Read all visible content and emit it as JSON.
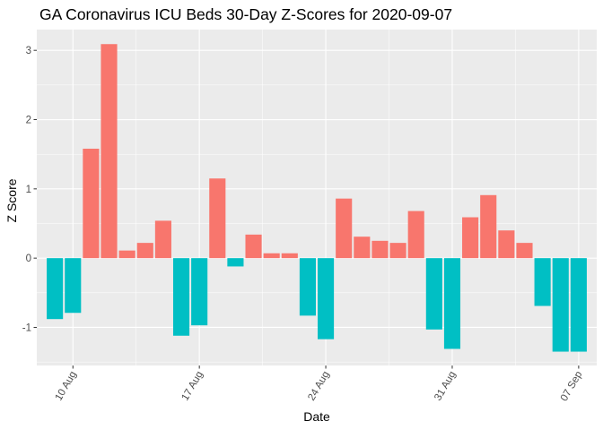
{
  "chart_data": {
    "type": "bar",
    "title": "GA Coronavirus ICU Beds 30-Day Z-Scores for 2020-09-07",
    "xlabel": "Date",
    "ylabel": "Z Score",
    "x": [
      "2020-08-09",
      "2020-08-10",
      "2020-08-11",
      "2020-08-12",
      "2020-08-13",
      "2020-08-14",
      "2020-08-15",
      "2020-08-16",
      "2020-08-17",
      "2020-08-18",
      "2020-08-19",
      "2020-08-20",
      "2020-08-21",
      "2020-08-22",
      "2020-08-23",
      "2020-08-24",
      "2020-08-25",
      "2020-08-26",
      "2020-08-27",
      "2020-08-28",
      "2020-08-29",
      "2020-08-30",
      "2020-08-31",
      "2020-09-01",
      "2020-09-02",
      "2020-09-03",
      "2020-09-04",
      "2020-09-05",
      "2020-09-06",
      "2020-09-07"
    ],
    "values": [
      -0.88,
      -0.79,
      1.58,
      3.09,
      0.11,
      0.22,
      0.54,
      -1.12,
      -0.97,
      1.15,
      -0.12,
      0.34,
      0.07,
      0.07,
      -0.83,
      -1.17,
      0.86,
      0.31,
      0.25,
      0.22,
      0.68,
      -1.03,
      -1.31,
      0.59,
      0.91,
      0.4,
      0.22,
      -0.69,
      -1.35,
      -1.35
    ],
    "xticks": [
      {
        "date": "2020-08-10",
        "label": "10 Aug"
      },
      {
        "date": "2020-08-17",
        "label": "17 Aug"
      },
      {
        "date": "2020-08-24",
        "label": "24 Aug"
      },
      {
        "date": "2020-08-31",
        "label": "31 Aug"
      },
      {
        "date": "2020-09-07",
        "label": "07 Sep"
      }
    ],
    "yticks": [
      -1,
      0,
      1,
      2,
      3
    ],
    "xlim": [
      "2020-08-08",
      "2020-09-08"
    ],
    "ylim": [
      -1.55,
      3.3
    ],
    "grid": true,
    "colors": {
      "positive": "#F8766D",
      "negative": "#00BFC4",
      "panel_background": "#EBEBEB",
      "grid_line": "#FFFFFF"
    }
  }
}
